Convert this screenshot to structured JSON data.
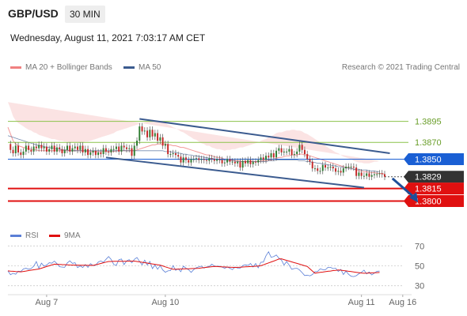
{
  "header": {
    "symbol": "GBP/USD",
    "timeframe": "30 MIN",
    "datetime": "Wednesday, August 11, 2021 7:03:17 AM CET"
  },
  "legend": {
    "bollinger": "MA 20 + Bollinger Bands",
    "ma50": "MA 50",
    "copyright": "Research © 2021 Trading Central"
  },
  "rsi_legend": {
    "rsi": "RSI",
    "ma9": "9MA"
  },
  "colors": {
    "bollinger": "#f08080",
    "ma50": "#3b5b8f",
    "green_level": "#8bc34a",
    "blue_level": "#1a5fd4",
    "red_level": "#e01010",
    "current": "#333333",
    "rsi": "#5b7fd6",
    "rsi_ma": "#e01010",
    "candle_up": "#2e7d32",
    "candle_down": "#c62828"
  },
  "chart_data": [
    {
      "type": "candlestick",
      "title": "",
      "ylim": [
        1.3776,
        1.3922
      ],
      "x_tick_labels": [
        "Aug 7",
        "Aug 10",
        "Aug 11",
        "Aug 16"
      ],
      "price_levels": [
        {
          "value": 1.3895,
          "label": "1.3895",
          "style": "green"
        },
        {
          "value": 1.387,
          "label": "1.3870",
          "style": "green"
        },
        {
          "value": 1.385,
          "label": "1.3850",
          "style": "blue"
        },
        {
          "value": 1.3829,
          "label": "1.3829",
          "style": "current"
        },
        {
          "value": 1.3815,
          "label": "1.3815",
          "style": "red"
        },
        {
          "value": 1.38,
          "label": "1.3800",
          "style": "red"
        }
      ],
      "close_series": [
        1.3868,
        1.3861,
        1.3857,
        1.3866,
        1.3858,
        1.3855,
        1.3859,
        1.3866,
        1.3861,
        1.3859,
        1.3865,
        1.3863,
        1.3867,
        1.3863,
        1.3865,
        1.3859,
        1.3862,
        1.3866,
        1.3859,
        1.3864,
        1.3862,
        1.3857,
        1.3861,
        1.3866,
        1.3859,
        1.3863,
        1.3865,
        1.3861,
        1.3866,
        1.3858,
        1.3862,
        1.3855,
        1.3858,
        1.386,
        1.3855,
        1.3858,
        1.3856,
        1.3863,
        1.3859,
        1.3858,
        1.3862,
        1.3862,
        1.3865,
        1.3859,
        1.3866,
        1.3864,
        1.3862,
        1.3863,
        1.3854,
        1.3866,
        1.3872,
        1.3889,
        1.3883,
        1.3884,
        1.3876,
        1.3885,
        1.3877,
        1.3881,
        1.3872,
        1.3876,
        1.3866,
        1.3868,
        1.3856,
        1.3856,
        1.3857,
        1.3855,
        1.3853,
        1.3846,
        1.3852,
        1.3849,
        1.3846,
        1.385,
        1.385,
        1.3851,
        1.3849,
        1.385,
        1.3849,
        1.3848,
        1.3851,
        1.385,
        1.3848,
        1.385,
        1.3849,
        1.3845,
        1.3846,
        1.385,
        1.3847,
        1.3847,
        1.3845,
        1.3847,
        1.384,
        1.3848,
        1.3845,
        1.3849,
        1.3844,
        1.3847,
        1.3846,
        1.3849,
        1.3852,
        1.3849,
        1.3854,
        1.3852,
        1.3857,
        1.3852,
        1.386,
        1.3863,
        1.3858,
        1.3859,
        1.3859,
        1.3862,
        1.3855,
        1.3856,
        1.3859,
        1.3867,
        1.3861,
        1.3856,
        1.385,
        1.3847,
        1.3839,
        1.3839,
        1.3836,
        1.3836,
        1.3843,
        1.384,
        1.384,
        1.3841,
        1.3839,
        1.3835,
        1.3836,
        1.3834,
        1.3839,
        1.3841,
        1.3841,
        1.3841,
        1.384,
        1.383,
        1.3834,
        1.383,
        1.383,
        1.3833,
        1.3829,
        1.3831,
        1.3832,
        1.3832,
        1.3833,
        1.3832,
        1.3829
      ],
      "ma20_series": [
        1.3888,
        1.388,
        1.3872,
        1.3868,
        1.3866,
        1.3865,
        1.3864,
        1.3863,
        1.3862,
        1.3862,
        1.3861,
        1.3861,
        1.386,
        1.386,
        1.386,
        1.386,
        1.386,
        1.386,
        1.386,
        1.386,
        1.386,
        1.386,
        1.386,
        1.386,
        1.386,
        1.386,
        1.386,
        1.386,
        1.386,
        1.386,
        1.386,
        1.3859,
        1.3859,
        1.3859,
        1.3859,
        1.3859,
        1.3859,
        1.3859,
        1.3859,
        1.3859,
        1.3859,
        1.3859,
        1.386,
        1.386,
        1.386,
        1.386,
        1.386,
        1.386,
        1.386,
        1.386,
        1.3861,
        1.3862,
        1.3863,
        1.3864,
        1.3865,
        1.3866,
        1.3867,
        1.3867,
        1.3868,
        1.3868,
        1.3868,
        1.3868,
        1.3867,
        1.3867,
        1.3866,
        1.3866,
        1.3865,
        1.3864,
        1.3864,
        1.3863,
        1.3862,
        1.3861,
        1.386,
        1.3859,
        1.3858,
        1.3857,
        1.3856,
        1.3855,
        1.3855,
        1.3854,
        1.3853,
        1.3852,
        1.3852,
        1.3851,
        1.385,
        1.385,
        1.3849,
        1.3849,
        1.3848,
        1.3848,
        1.3848,
        1.3847,
        1.3847,
        1.3847,
        1.3847,
        1.3847,
        1.3847,
        1.3847,
        1.3848,
        1.3848,
        1.3848,
        1.3849,
        1.3849,
        1.385,
        1.3851,
        1.3852,
        1.3852,
        1.3853,
        1.3854,
        1.3854,
        1.3855,
        1.3855,
        1.3855,
        1.3856,
        1.3856,
        1.3855,
        1.3855,
        1.3854,
        1.3853,
        1.3852,
        1.3851,
        1.385,
        1.3849,
        1.3848,
        1.3847,
        1.3846,
        1.3845,
        1.3844,
        1.3843,
        1.3842,
        1.3841,
        1.384,
        1.384,
        1.3839,
        1.3838,
        1.3837,
        1.3836,
        1.3836,
        1.3835,
        1.3835,
        1.3834,
        1.3834,
        1.3834,
        1.3833,
        1.3833,
        1.3833,
        1.3832
      ],
      "ma50_series": [
        1.3878,
        1.3877,
        1.3876,
        1.3875,
        1.3874,
        1.3873,
        1.3872,
        1.3871,
        1.387,
        1.3869,
        1.3868,
        1.3867,
        1.3866,
        1.3866,
        1.3865,
        1.3864,
        1.3864,
        1.3863,
        1.3863,
        1.3862,
        1.3862,
        1.3861,
        1.3861,
        1.3861,
        1.386,
        1.386,
        1.386,
        1.386,
        1.386,
        1.386,
        1.386,
        1.386,
        1.386,
        1.386,
        1.386,
        1.386,
        1.386,
        1.386,
        1.386,
        1.386,
        1.386,
        1.386,
        1.386,
        1.386,
        1.386,
        1.386,
        1.386,
        1.386,
        1.386,
        1.386,
        1.386,
        1.386,
        1.386,
        1.386,
        1.386,
        1.386,
        1.386,
        1.386,
        1.386,
        1.386,
        1.386,
        1.3859,
        1.3859,
        1.3859,
        1.3858,
        1.3858,
        1.3857,
        1.3857,
        1.3856,
        1.3856,
        1.3855,
        1.3855,
        1.3854,
        1.3854,
        1.3853,
        1.3853,
        1.3852,
        1.3852,
        1.3851,
        1.3851,
        1.385,
        1.385,
        1.3849,
        1.3849,
        1.3849,
        1.3848,
        1.3848,
        1.3848,
        1.3848,
        1.3847,
        1.3847,
        1.3847,
        1.3847,
        1.3847,
        1.3847,
        1.3847,
        1.3847,
        1.3847,
        1.3847,
        1.3847,
        1.3847,
        1.3848,
        1.3848,
        1.3848,
        1.3849,
        1.3849,
        1.3849,
        1.3849,
        1.3849,
        1.3849,
        1.3849,
        1.3849,
        1.3849,
        1.3848,
        1.3848,
        1.3848,
        1.3847,
        1.3847,
        1.3846,
        1.3846,
        1.3845,
        1.3845,
        1.3844,
        1.3844,
        1.3843,
        1.3843,
        1.3842,
        1.3842,
        1.3841,
        1.3841,
        1.384,
        1.384,
        1.3839,
        1.3839,
        1.3838,
        1.3838,
        1.3838,
        1.3837,
        1.3837,
        1.3837,
        1.3836,
        1.3836,
        1.3836,
        1.3835,
        1.3835
      ],
      "bollinger_width": [
        0.003,
        0.003,
        0.0029,
        0.0028,
        0.0027,
        0.0026,
        0.0025,
        0.0024,
        0.0023,
        0.0022,
        0.0021,
        0.002,
        0.0019,
        0.0018,
        0.0017,
        0.0016,
        0.0015,
        0.0014,
        0.0014,
        0.0013,
        0.0012,
        0.0012,
        0.0011,
        0.0011,
        0.001,
        0.001,
        0.001,
        0.001,
        0.001,
        0.001,
        0.0011,
        0.0012,
        0.0013,
        0.0014,
        0.0015,
        0.0016,
        0.0017,
        0.0018,
        0.0019,
        0.002,
        0.0021,
        0.0022,
        0.0023,
        0.0024,
        0.0025,
        0.0026,
        0.0027,
        0.0028,
        0.0029,
        0.003,
        0.003,
        0.003,
        0.003,
        0.003,
        0.003,
        0.003,
        0.003,
        0.0029,
        0.0028,
        0.0027,
        0.0026,
        0.0025,
        0.0024,
        0.0023,
        0.0022,
        0.0021,
        0.002,
        0.0019,
        0.0018,
        0.0017,
        0.0016,
        0.0015,
        0.0014,
        0.0014,
        0.0013,
        0.0012,
        0.0012,
        0.0011,
        0.0011,
        0.001,
        0.001,
        0.001,
        0.001,
        0.001,
        0.001,
        0.0011,
        0.0012,
        0.0013,
        0.0014,
        0.0015,
        0.0016,
        0.0017,
        0.0018,
        0.0019,
        0.002,
        0.0021,
        0.0022,
        0.0023,
        0.0024,
        0.0025,
        0.0026,
        0.0027,
        0.0028,
        0.0029,
        0.003,
        0.003,
        0.003,
        0.003,
        0.003,
        0.003,
        0.003,
        0.003,
        0.0029,
        0.0028,
        0.0027,
        0.0026,
        0.0025,
        0.0024,
        0.0023,
        0.0022,
        0.0021,
        0.002,
        0.0019,
        0.0018,
        0.0017,
        0.0016,
        0.0015,
        0.0014,
        0.0014,
        0.0013,
        0.0012,
        0.0012,
        0.0011,
        0.0011,
        0.001,
        0.001,
        0.001,
        0.001,
        0.001,
        0.001,
        0.0011,
        0.0012,
        0.0013,
        0.0014,
        0.0015
      ],
      "channel": {
        "upper": {
          "from": [
            51,
            1.3898
          ],
          "to": [
            148,
            1.3857
          ]
        },
        "lower": {
          "from": [
            38,
            1.3852
          ],
          "to": [
            138,
            1.3816
          ]
        }
      },
      "forecast_arrow": {
        "from": [
          149,
          1.3827
        ],
        "to": [
          158,
          1.3803
        ]
      }
    },
    {
      "type": "line",
      "title": "",
      "ylim": [
        25,
        75
      ],
      "yticks": [
        30,
        50,
        70
      ],
      "series": [
        {
          "name": "RSI",
          "values": [
            44.9,
            41.1,
            42.5,
            41.6,
            44.6,
            44.3,
            46.9,
            47.5,
            46.6,
            47.3,
            49.6,
            54.3,
            47.6,
            52.7,
            49.7,
            50.8,
            53.1,
            52.6,
            54.8,
            52.2,
            49.1,
            48.7,
            48.6,
            52.9,
            55.0,
            52.5,
            53.1,
            48.2,
            50.0,
            48.3,
            51.3,
            48.4,
            52.2,
            50.3,
            50.5,
            53.8,
            54.9,
            53.5,
            56.5,
            59.4,
            56.5,
            51.4,
            50.5,
            56.2,
            56.8,
            51.3,
            54.9,
            56.3,
            53.1,
            56.5,
            58.4,
            54.5,
            51.0,
            55.7,
            50.8,
            54.4,
            47.2,
            50.9,
            46.6,
            50.2,
            45.9,
            43.6,
            44.9,
            45.2,
            50.2,
            45.5,
            47.1,
            44.1,
            49.7,
            47.6,
            46.1,
            43.4,
            46.2,
            48.1,
            49.0,
            49.7,
            47.7,
            48.9,
            49.4,
            51.7,
            49.8,
            49.5,
            49.6,
            48.7,
            47.6,
            48.8,
            47.6,
            46.2,
            48.8,
            47.7,
            47.6,
            50.3,
            51.0,
            50.5,
            52.4,
            48.9,
            52.3,
            48.0,
            53.6,
            53.8,
            60.1,
            64.1,
            58.6,
            59.4,
            60.9,
            57.8,
            55.8,
            50.8,
            54.3,
            50.6,
            46.5,
            47.3,
            47.5,
            45.9,
            43.2,
            40.2,
            40.6,
            39.9,
            41.3,
            44.1,
            44.4,
            47.0,
            46.2,
            46.0,
            48.5,
            48.5,
            47.2,
            47.6,
            44.4,
            46.4,
            41.3,
            44.7,
            41.5,
            39.5,
            39.2,
            40.1,
            42.1,
            43.5,
            45.6,
            41.9,
            43.8,
            40.9,
            42.7,
            44.5,
            44.7
          ]
        },
        {
          "name": "9MA",
          "values": [
            44.9,
            44.7,
            44.5,
            44.3,
            44.1,
            44.0,
            44.4,
            44.8,
            45.2,
            45.6,
            46.0,
            46.4,
            46.8,
            47.6,
            48.4,
            49.3,
            50.1,
            50.9,
            51.7,
            51.6,
            51.4,
            51.3,
            51.2,
            51.0,
            50.9,
            50.8,
            50.7,
            50.7,
            50.6,
            50.6,
            50.6,
            50.5,
            50.5,
            50.4,
            51.1,
            51.7,
            52.4,
            53.1,
            53.7,
            54.4,
            54.4,
            54.5,
            54.5,
            54.6,
            54.6,
            54.6,
            54.7,
            54.7,
            54.8,
            54.8,
            54.4,
            54.0,
            53.6,
            53.2,
            52.8,
            52.3,
            51.9,
            51.5,
            51.1,
            50.7,
            49.9,
            49.0,
            48.2,
            47.4,
            46.5,
            46.6,
            46.7,
            46.8,
            46.9,
            47.0,
            47.1,
            47.2,
            47.3,
            47.4,
            47.5,
            47.9,
            48.2,
            48.5,
            48.8,
            49.1,
            49.4,
            49.3,
            49.1,
            49.0,
            48.9,
            48.7,
            48.6,
            48.5,
            48.3,
            48.5,
            48.6,
            48.8,
            49.0,
            49.1,
            49.3,
            49.4,
            49.6,
            49.8,
            50.1,
            51.0,
            52.0,
            52.9,
            53.9,
            54.8,
            55.8,
            56.8,
            57.1,
            56.3,
            55.5,
            54.8,
            54.0,
            53.2,
            52.5,
            51.7,
            50.9,
            50.1,
            49.4,
            47.1,
            44.8,
            42.6,
            43.0,
            43.4,
            43.7,
            44.1,
            44.5,
            44.8,
            45.2,
            45.5,
            45.9,
            45.6,
            45.2,
            44.9,
            44.5,
            44.2,
            43.8,
            43.5,
            43.2,
            42.8,
            42.5,
            42.6,
            42.8,
            42.9,
            43.1,
            43.2,
            43.3
          ]
        }
      ]
    }
  ]
}
